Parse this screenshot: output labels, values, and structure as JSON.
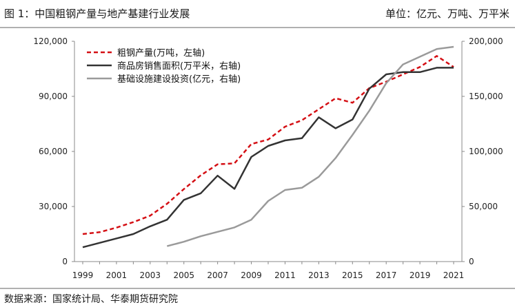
{
  "header": {
    "title": "图 1：中国粗钢产量与地产基建行业发展",
    "unit": "单位：亿元、万吨、万平米"
  },
  "footer": {
    "source": "数据来源：国家统计局、华泰期货研究院"
  },
  "chart_data": {
    "type": "line",
    "x": [
      "1999",
      "2000",
      "2001",
      "2002",
      "2003",
      "2004",
      "2005",
      "2006",
      "2007",
      "2008",
      "2009",
      "2010",
      "2011",
      "2012",
      "2013",
      "2014",
      "2015",
      "2016",
      "2017",
      "2018",
      "2019",
      "2020",
      "2021"
    ],
    "x_tick_labels": [
      "1999",
      "2001",
      "2003",
      "2005",
      "2007",
      "2009",
      "2011",
      "2013",
      "2015",
      "2017",
      "2019",
      "2021"
    ],
    "y_left": {
      "lim": [
        0,
        120000
      ],
      "ticks": [
        0,
        30000,
        60000,
        90000,
        120000
      ],
      "tick_labels": [
        "0",
        "30,000",
        "60,000",
        "90,000",
        "120,000"
      ]
    },
    "y_right": {
      "lim": [
        0,
        200000
      ],
      "ticks": [
        0,
        50000,
        100000,
        150000,
        200000
      ],
      "tick_labels": [
        "0",
        "50,000",
        "100,000",
        "150,000",
        "200,000"
      ]
    },
    "grid": false,
    "legend_position": "top-left",
    "series": [
      {
        "name": "粗钢产量(万吨，左轴)",
        "axis": "left",
        "color": "#d40f14",
        "dash": true,
        "values": [
          15000,
          16000,
          18500,
          21500,
          25000,
          31500,
          39500,
          47000,
          53000,
          53500,
          64000,
          66500,
          73500,
          77000,
          83000,
          89000,
          86500,
          94500,
          98000,
          102000,
          106000,
          112000,
          106000
        ]
      },
      {
        "name": "商品房销售面积(万平米，右轴)",
        "axis": "right",
        "color": "#333333",
        "dash": false,
        "values": [
          13000,
          17000,
          21000,
          25000,
          32000,
          38000,
          56000,
          62000,
          78000,
          66000,
          95000,
          105000,
          110000,
          112000,
          131000,
          121000,
          129000,
          157000,
          170000,
          172000,
          172000,
          176000,
          176000
        ]
      },
      {
        "name": "基础设施建设投资(亿元，右轴)",
        "axis": "right",
        "color": "#9a9a9a",
        "dash": false,
        "values": [
          null,
          null,
          null,
          null,
          null,
          14000,
          18000,
          23000,
          27000,
          31000,
          38000,
          55000,
          65000,
          67000,
          77000,
          94000,
          115000,
          137000,
          162000,
          179000,
          186000,
          193000,
          195000
        ]
      }
    ]
  }
}
